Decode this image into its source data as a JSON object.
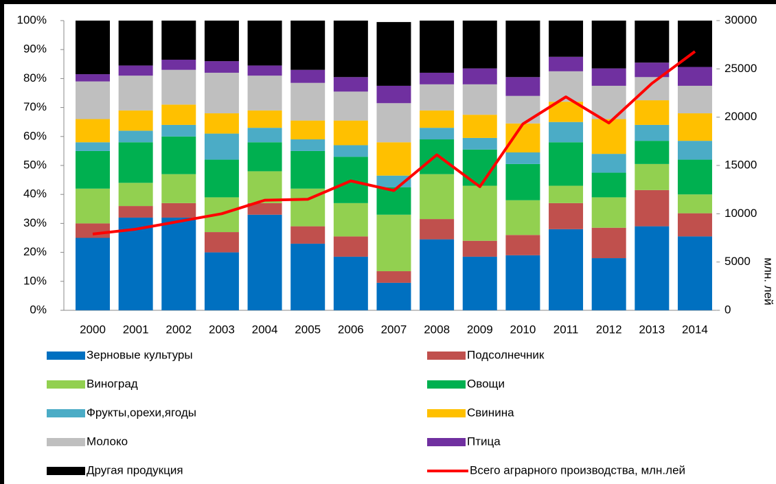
{
  "chart_data": {
    "type": "stacked-bar-line",
    "categories": [
      "2000",
      "2001",
      "2002",
      "2003",
      "2004",
      "2005",
      "2006",
      "2007",
      "2008",
      "2009",
      "2010",
      "2011",
      "2012",
      "2013",
      "2014"
    ],
    "series": [
      {
        "name": "Зерновые культуры",
        "color": "#0070c0",
        "values": [
          25,
          32,
          32,
          20,
          33,
          23,
          18.5,
          9.5,
          24.5,
          18.5,
          19,
          28,
          18,
          29,
          25.5
        ]
      },
      {
        "name": "Подсолнечник",
        "color": "#c0504d",
        "values": [
          5,
          4,
          5,
          7,
          4,
          6,
          7,
          4,
          7,
          5.5,
          7,
          9,
          10.5,
          12.5,
          8
        ]
      },
      {
        "name": "Виноград",
        "color": "#92d050",
        "values": [
          12,
          8,
          10,
          12,
          11,
          13,
          11.5,
          19.5,
          15.5,
          19,
          12,
          6,
          10.5,
          9,
          6.5
        ]
      },
      {
        "name": "Овощи",
        "color": "#00b050",
        "values": [
          13,
          14,
          13,
          13,
          10,
          13,
          16,
          9.5,
          12,
          12.5,
          12.5,
          15,
          8.5,
          8,
          12
        ]
      },
      {
        "name": "Фрукты,орехи,ягоды",
        "color": "#4bacc6",
        "values": [
          3,
          4,
          4,
          9,
          5,
          4,
          4,
          4,
          4,
          4,
          4,
          7,
          6.5,
          5.5,
          6.5
        ]
      },
      {
        "name": "Свинина",
        "color": "#ffc000",
        "values": [
          8,
          7,
          7,
          7,
          6,
          6.5,
          8.5,
          11.5,
          6,
          8,
          10,
          7,
          12,
          8.5,
          9.5
        ]
      },
      {
        "name": "Молоко",
        "color": "#bfbfbf",
        "values": [
          13,
          12,
          12,
          14,
          12,
          13,
          10,
          13.5,
          9,
          10.5,
          9.5,
          10.5,
          11.5,
          8,
          9.5
        ]
      },
      {
        "name": "Птица",
        "color": "#7030a0",
        "values": [
          2.5,
          3.5,
          3.5,
          4,
          3.5,
          4.5,
          5,
          6,
          4,
          5.5,
          6.5,
          5,
          6,
          5,
          6.5
        ]
      },
      {
        "name": "Другая продукция",
        "color": "#000000",
        "values": [
          18.5,
          15.5,
          13.5,
          14,
          15.5,
          17,
          19.5,
          22,
          18,
          16.5,
          19.5,
          12.5,
          16.5,
          14.5,
          16
        ]
      },
      {
        "name": "Всего аграрного производства, млн.лей",
        "color": "#ff0000",
        "axis": "y2",
        "values": [
          7900,
          8400,
          9200,
          10000,
          11400,
          11500,
          13400,
          12400,
          16100,
          12800,
          19300,
          22100,
          19400,
          23500,
          26800
        ]
      }
    ],
    "ylim": [
      0,
      100
    ],
    "yticks": [
      {
        "value": 0,
        "label": "0%"
      },
      {
        "value": 10,
        "label": "10%"
      },
      {
        "value": 20,
        "label": "20%"
      },
      {
        "value": 30,
        "label": "30%"
      },
      {
        "value": 40,
        "label": "40%"
      },
      {
        "value": 50,
        "label": "50%"
      },
      {
        "value": 60,
        "label": "60%"
      },
      {
        "value": 70,
        "label": "70%"
      },
      {
        "value": 80,
        "label": "80%"
      },
      {
        "value": 90,
        "label": "90%"
      },
      {
        "value": 100,
        "label": "100%"
      }
    ],
    "y2lim": [
      0,
      30000
    ],
    "y2ticks": [
      0,
      5000,
      10000,
      15000,
      20000,
      25000,
      30000
    ],
    "y2label": "млн. лей"
  }
}
